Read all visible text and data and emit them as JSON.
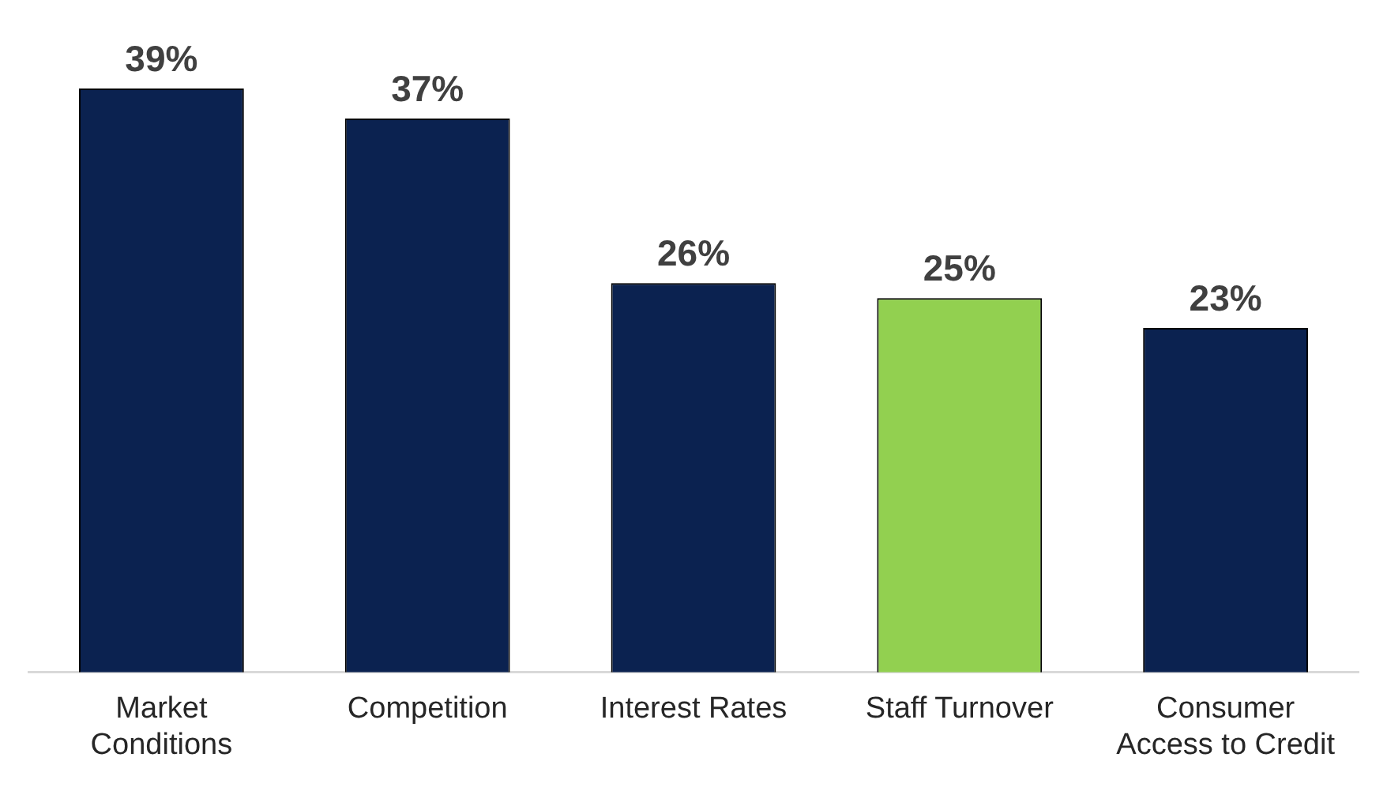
{
  "chart_data": {
    "type": "bar",
    "categories": [
      "Market Conditions",
      "Competition",
      "Interest Rates",
      "Staff Turnover",
      "Consumer Access to Credit"
    ],
    "values": [
      39,
      37,
      26,
      25,
      23
    ],
    "colors": [
      "#0b2250",
      "#0b2250",
      "#0b2250",
      "#92d050",
      "#0b2250"
    ],
    "value_labels": [
      "39%",
      "37%",
      "26%",
      "25%",
      "23%"
    ],
    "grid": false,
    "legend": false
  }
}
